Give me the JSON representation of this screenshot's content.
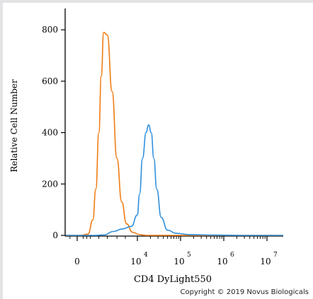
{
  "chart_data": {
    "type": "histogram",
    "xlabel": "CD4 DyLight550",
    "ylabel": "Relative Cell Number",
    "ylim": [
      0,
      850
    ],
    "y_ticks": [
      0,
      200,
      400,
      600,
      800
    ],
    "x_tick_labels": [
      {
        "base": "0",
        "exp": ""
      },
      {
        "base": "10",
        "exp": "4"
      },
      {
        "base": "10",
        "exp": "5"
      },
      {
        "base": "10",
        "exp": "6"
      },
      {
        "base": "10",
        "exp": "7"
      }
    ],
    "series": [
      {
        "color": "#f07c14",
        "x": [
          -0.25,
          0.05,
          0.18,
          0.26,
          0.31,
          0.36,
          0.4,
          0.44,
          0.5,
          0.58,
          0.66,
          0.74,
          0.82,
          0.92,
          1.05,
          1.2,
          1.5,
          2.0,
          3.0,
          4.0,
          5.2
        ],
        "y": [
          0,
          0,
          5,
          60,
          180,
          400,
          620,
          790,
          780,
          560,
          300,
          130,
          45,
          12,
          3,
          0,
          0,
          0,
          0,
          0,
          0
        ]
      },
      {
        "color": "#2f8fdc",
        "x": [
          -0.25,
          0.3,
          0.45,
          0.6,
          0.75,
          0.9,
          1.0,
          1.05,
          1.12,
          1.2,
          1.26,
          1.32,
          1.38,
          1.45,
          1.55,
          1.7,
          1.9,
          2.2,
          2.8,
          3.5,
          4.5,
          5.2
        ],
        "y": [
          0,
          0,
          2,
          15,
          25,
          35,
          80,
          160,
          300,
          400,
          430,
          400,
          300,
          180,
          70,
          20,
          8,
          3,
          1,
          0,
          0,
          0
        ]
      }
    ]
  },
  "copyright": "Copyright © 2019 Novus Biologicals"
}
